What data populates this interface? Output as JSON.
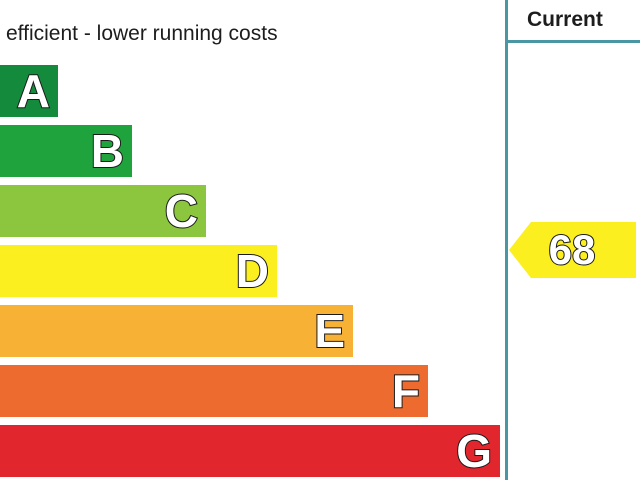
{
  "header": {
    "text": "efficient - lower running costs",
    "current_label": "Current"
  },
  "chart_data": {
    "type": "bar",
    "categories": [
      "A",
      "B",
      "C",
      "D",
      "E",
      "F",
      "G"
    ],
    "colors": [
      "#138a3c",
      "#1fa33d",
      "#8cc63f",
      "#fbef1f",
      "#f7b135",
      "#ed6b2e",
      "#e2262e"
    ],
    "current": {
      "value": "68",
      "band": "D",
      "color": "#fbef1f"
    }
  }
}
